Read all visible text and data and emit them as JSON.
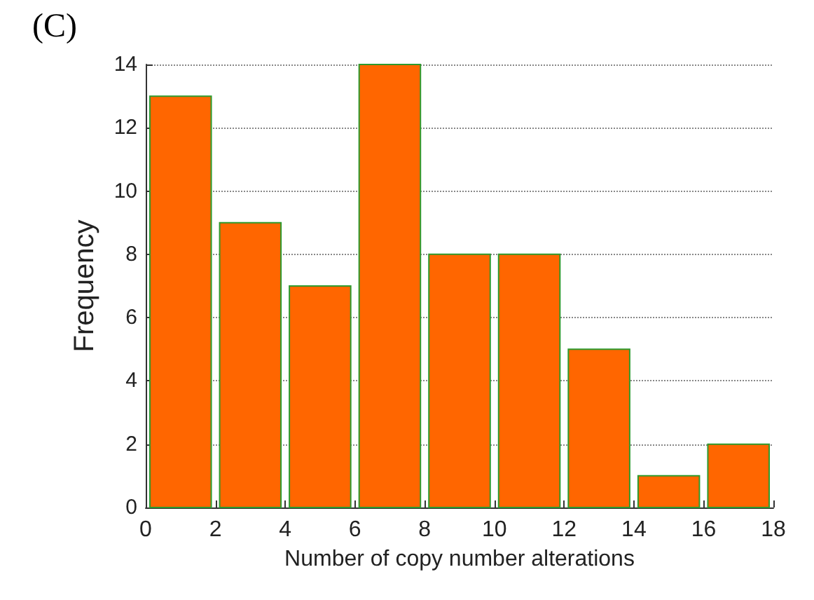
{
  "chart_data": {
    "type": "histogram",
    "title": "(C)",
    "xlabel": "Number of copy number alterations",
    "ylabel": "Frequency",
    "bins": [
      0,
      2,
      4,
      6,
      8,
      10,
      12,
      14,
      16,
      18
    ],
    "values": [
      13,
      9,
      7,
      14,
      8,
      8,
      5,
      1,
      2
    ],
    "color": "#ff6600",
    "xlim": [
      0,
      18
    ],
    "xticks": [
      0,
      2,
      4,
      6,
      8,
      10,
      12,
      14,
      16,
      18
    ],
    "ylim": [
      0,
      14
    ],
    "yticks": [
      0,
      2,
      4,
      6,
      8,
      10,
      12,
      14
    ],
    "grid": "y"
  }
}
